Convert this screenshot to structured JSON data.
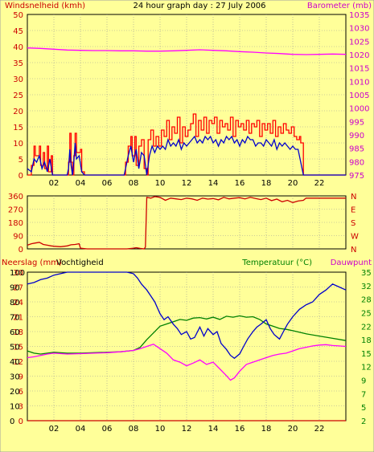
{
  "chart_data": [
    {
      "type": "line",
      "title": "24 hour graph day : 27 July 2006",
      "ylabel": "Windsnelheid (kmh)",
      "y2label": "Barometer (mb)",
      "xlim": [
        0,
        24
      ],
      "ylim": [
        0,
        50
      ],
      "y2lim": [
        975,
        1035
      ],
      "x_ticks": [
        "02",
        "04",
        "06",
        "08",
        "10",
        "12",
        "14",
        "16",
        "18",
        "20",
        "22"
      ],
      "y_ticks": [
        "0",
        "5",
        "10",
        "15",
        "20",
        "25",
        "30",
        "35",
        "40",
        "45",
        "50"
      ],
      "y2_ticks": [
        "975",
        "980",
        "985",
        "990",
        "995",
        "1000",
        "1005",
        "1010",
        "1015",
        "1020",
        "1025",
        "1030",
        "1035"
      ],
      "series": [
        {
          "role": "wind_gust",
          "color": "#ff0000",
          "x": [
            0,
            0.3,
            0.5,
            0.6,
            0.9,
            1.0,
            1.2,
            1.3,
            1.5,
            1.6,
            1.8,
            1.9,
            3.0,
            3.1,
            3.2,
            3.3,
            3.4,
            3.5,
            3.6,
            3.7,
            4.0,
            4.1,
            4.3,
            4.4,
            7.3,
            7.4,
            7.6,
            7.8,
            7.9,
            8.1,
            8.2,
            8.4,
            8.6,
            8.8,
            9.0,
            9.1,
            9.3,
            9.5,
            9.7,
            9.9,
            10.1,
            10.3,
            10.5,
            10.7,
            10.9,
            11.1,
            11.3,
            11.5,
            11.7,
            11.9,
            12.1,
            12.3,
            12.5,
            12.7,
            12.9,
            13.1,
            13.3,
            13.5,
            13.7,
            13.9,
            14.1,
            14.3,
            14.5,
            14.7,
            14.9,
            15.1,
            15.3,
            15.5,
            15.7,
            15.9,
            16.1,
            16.3,
            16.5,
            16.7,
            16.9,
            17.1,
            17.3,
            17.5,
            17.7,
            17.9,
            18.1,
            18.3,
            18.5,
            18.7,
            18.9,
            19.1,
            19.3,
            19.5,
            19.7,
            19.9,
            20.1,
            20.3,
            20.5,
            20.6,
            20.8,
            24
          ],
          "values": [
            0,
            3,
            9,
            6,
            9,
            3,
            7,
            2,
            9,
            1,
            6,
            0,
            0,
            4,
            13,
            4,
            0,
            6,
            13,
            7,
            8,
            1,
            0,
            0,
            0,
            4,
            9,
            12,
            6,
            12,
            3,
            9,
            11,
            2,
            0,
            11,
            14,
            9,
            12,
            9,
            14,
            12,
            17,
            11,
            15,
            13,
            18,
            10,
            15,
            12,
            14,
            16,
            19,
            12,
            17,
            14,
            18,
            13,
            17,
            16,
            18,
            13,
            17,
            15,
            16,
            14,
            18,
            12,
            17,
            15,
            16,
            14,
            17,
            13,
            16,
            15,
            17,
            12,
            16,
            14,
            16,
            13,
            17,
            12,
            15,
            13,
            16,
            14,
            13,
            15,
            12,
            11,
            12,
            10,
            0,
            0
          ]
        },
        {
          "role": "wind_avg",
          "color": "#0000cc",
          "x": [
            0,
            0.3,
            0.5,
            0.7,
            0.9,
            1.1,
            1.3,
            1.5,
            1.7,
            1.9,
            3.0,
            3.1,
            3.2,
            3.3,
            3.4,
            3.5,
            3.6,
            3.7,
            3.9,
            4.1,
            4.3,
            7.3,
            7.4,
            7.6,
            7.8,
            8.0,
            8.2,
            8.4,
            8.6,
            8.8,
            9.0,
            9.2,
            9.4,
            9.6,
            9.8,
            10.0,
            10.2,
            10.4,
            10.6,
            10.8,
            11.0,
            11.2,
            11.4,
            11.6,
            11.8,
            12.0,
            12.2,
            12.4,
            12.6,
            12.8,
            13.0,
            13.2,
            13.4,
            13.6,
            13.8,
            14.0,
            14.2,
            14.4,
            14.6,
            14.8,
            15.0,
            15.2,
            15.4,
            15.6,
            15.8,
            16.0,
            16.2,
            16.4,
            16.6,
            16.8,
            17.0,
            17.2,
            17.4,
            17.6,
            17.8,
            18.0,
            18.2,
            18.4,
            18.6,
            18.8,
            19.0,
            19.2,
            19.4,
            19.6,
            19.8,
            20.0,
            20.2,
            20.4,
            20.6,
            20.8,
            24
          ],
          "values": [
            2,
            1,
            5,
            4,
            6,
            2,
            4,
            1,
            5,
            0,
            0,
            2,
            8,
            3,
            0,
            4,
            10,
            5,
            6,
            1,
            0,
            0,
            2,
            6,
            9,
            4,
            8,
            2,
            7,
            6,
            0,
            6,
            9,
            7,
            9,
            8,
            9,
            8,
            11,
            9,
            10,
            9,
            11,
            8,
            10,
            9,
            10,
            11,
            12,
            10,
            11,
            10,
            12,
            11,
            12,
            10,
            11,
            9,
            11,
            10,
            12,
            11,
            12,
            10,
            11,
            9,
            11,
            10,
            12,
            11,
            11,
            9,
            10,
            10,
            9,
            11,
            10,
            9,
            11,
            8,
            10,
            9,
            10,
            9,
            8,
            9,
            8,
            8,
            4,
            0,
            0
          ]
        },
        {
          "role": "barometer",
          "color": "#ff00ff",
          "axis": "y2",
          "x": [
            0,
            1,
            2,
            3,
            4,
            5,
            6,
            7,
            8,
            9,
            10,
            11,
            12,
            13,
            14,
            15,
            16,
            17,
            18,
            19,
            20,
            21,
            22,
            23,
            24
          ],
          "values": [
            1022.5,
            1022.3,
            1022.0,
            1021.7,
            1021.6,
            1021.5,
            1021.5,
            1021.4,
            1021.4,
            1021.3,
            1021.3,
            1021.4,
            1021.6,
            1021.8,
            1021.6,
            1021.4,
            1021.1,
            1020.9,
            1020.6,
            1020.4,
            1020.1,
            1020.0,
            1020.1,
            1020.2,
            1020.1
          ]
        }
      ]
    },
    {
      "type": "line",
      "ylim": [
        0,
        360
      ],
      "y_ticks": [
        "0",
        "90",
        "180",
        "270",
        "360"
      ],
      "y2_ticks": [
        "N",
        "W",
        "S",
        "E",
        "N"
      ],
      "series": [
        {
          "role": "wind_direction",
          "color": "#cc0000",
          "x": [
            0,
            0.3,
            0.6,
            0.9,
            1.2,
            1.5,
            1.8,
            2.0,
            2.5,
            3.0,
            3.3,
            3.6,
            3.9,
            4.0,
            4.5,
            5,
            6,
            7,
            7.5,
            8.0,
            8.2,
            8.5,
            8.8,
            8.9,
            9.0,
            9.3,
            9.6,
            10,
            10.4,
            10.8,
            11.2,
            11.6,
            12,
            12.4,
            12.8,
            13.2,
            13.6,
            14,
            14.4,
            14.8,
            15.2,
            15.6,
            16,
            16.4,
            16.8,
            17.2,
            17.6,
            18,
            18.4,
            18.8,
            19.2,
            19.6,
            20,
            20.4,
            20.8,
            21,
            22,
            23,
            24
          ],
          "values": [
            25,
            35,
            40,
            45,
            30,
            25,
            20,
            18,
            15,
            20,
            28,
            30,
            35,
            5,
            0,
            0,
            0,
            0,
            0,
            5,
            8,
            3,
            0,
            12,
            350,
            345,
            355,
            350,
            330,
            345,
            340,
            335,
            345,
            340,
            330,
            345,
            338,
            342,
            333,
            350,
            340,
            345,
            348,
            340,
            350,
            342,
            335,
            345,
            328,
            338,
            320,
            330,
            315,
            325,
            330,
            345,
            345,
            345,
            345
          ]
        }
      ]
    },
    {
      "type": "line",
      "ylabel": "Neerslag (mm)",
      "ylabel2": "Vochtigheid",
      "y2label": "Temperatuur (°C)",
      "y2label2": "Dauwpunt",
      "ylim_rain": [
        0,
        30
      ],
      "ylim_humidity": [
        0,
        100
      ],
      "y2lim": [
        2,
        35
      ],
      "y_ticks": [
        "0",
        "3",
        "6",
        "9",
        "12",
        "15",
        "18",
        "21",
        "24",
        "27",
        "30"
      ],
      "y_ticks_humidity": [
        "0",
        "10",
        "20",
        "30",
        "40",
        "50",
        "60",
        "70",
        "80",
        "90",
        "100"
      ],
      "y2_ticks": [
        "2",
        "5",
        "7",
        "9",
        "12",
        "15",
        "18",
        "22",
        "25",
        "28",
        "32",
        "35"
      ],
      "series": [
        {
          "role": "rain",
          "color": "#cc0000",
          "axis": "rain",
          "x": [
            0,
            24
          ],
          "values": [
            0,
            0
          ]
        },
        {
          "role": "humidity",
          "color": "#0000cc",
          "axis": "humidity",
          "x": [
            0,
            0.5,
            1,
            1.5,
            2,
            2.5,
            3,
            4,
            5,
            6,
            7,
            7.5,
            8,
            8.3,
            8.6,
            9,
            9.3,
            9.6,
            10,
            10.3,
            10.6,
            11,
            11.3,
            11.6,
            12,
            12.3,
            12.6,
            13,
            13.3,
            13.6,
            14,
            14.3,
            14.6,
            15,
            15.3,
            15.6,
            16,
            16.3,
            16.6,
            17,
            17.3,
            17.6,
            18,
            18.3,
            18.6,
            19,
            19.3,
            19.6,
            20,
            20.5,
            21,
            21.5,
            22,
            22.5,
            23,
            23.5,
            24
          ],
          "values": [
            92,
            93,
            95,
            96,
            98,
            99,
            100,
            100,
            100,
            100,
            100,
            100,
            99,
            96,
            92,
            88,
            84,
            80,
            72,
            68,
            70,
            65,
            62,
            58,
            60,
            55,
            56,
            63,
            57,
            62,
            58,
            60,
            52,
            48,
            44,
            42,
            45,
            50,
            55,
            60,
            63,
            65,
            68,
            62,
            58,
            55,
            60,
            65,
            70,
            75,
            78,
            80,
            85,
            88,
            92,
            90,
            88
          ]
        },
        {
          "role": "temperature",
          "color": "#008000",
          "axis": "y2",
          "x": [
            0,
            0.5,
            1,
            1.5,
            2,
            3,
            4,
            5,
            6,
            7,
            8,
            8.5,
            9,
            9.5,
            10,
            10.5,
            11,
            11.5,
            12,
            12.5,
            13,
            13.5,
            14,
            14.5,
            15,
            15.5,
            16,
            16.5,
            17,
            17.5,
            18,
            18.5,
            19,
            19.5,
            20,
            21,
            22,
            23,
            24
          ],
          "values": [
            17.5,
            17,
            16.8,
            17,
            17.2,
            17,
            17,
            17.1,
            17.2,
            17.3,
            17.6,
            18.3,
            20,
            21.5,
            23,
            23.5,
            24,
            24.5,
            24.3,
            24.8,
            24.9,
            24.6,
            25,
            24.5,
            25.2,
            25,
            25.3,
            25,
            25.1,
            24.5,
            23.5,
            23,
            22.5,
            22.3,
            22,
            21.3,
            20.8,
            20.3,
            19.8
          ]
        },
        {
          "role": "dewpoint",
          "color": "#ff00ff",
          "axis": "y2",
          "x": [
            0,
            0.5,
            1,
            1.5,
            2,
            3,
            4,
            5,
            6,
            7,
            8,
            8.5,
            9,
            9.5,
            10,
            10.5,
            11,
            11.5,
            12,
            12.5,
            13,
            13.5,
            14,
            14.5,
            15,
            15.3,
            15.6,
            16,
            16.5,
            17,
            17.5,
            18,
            18.5,
            19,
            19.5,
            20,
            20.5,
            21,
            21.5,
            22,
            22.5,
            23,
            23.5,
            24
          ],
          "values": [
            16,
            16.2,
            16.5,
            16.8,
            17,
            16.8,
            16.9,
            17,
            17.1,
            17.3,
            17.6,
            18,
            18.5,
            19,
            18,
            17,
            15.5,
            15,
            14.2,
            14.8,
            15.5,
            14.5,
            15,
            13.5,
            12,
            11,
            11.5,
            13,
            14.5,
            15,
            15.5,
            16,
            16.5,
            16.8,
            17,
            17.5,
            18,
            18.3,
            18.6,
            18.8,
            18.9,
            18.7,
            18.6,
            18.5
          ]
        }
      ]
    }
  ]
}
